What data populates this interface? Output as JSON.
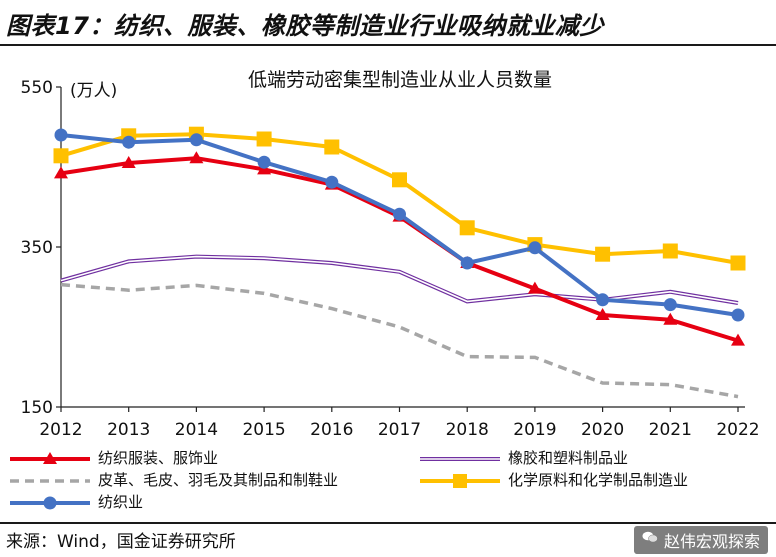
{
  "figure_title": "图表17：纺织、服装、橡胶等制造业行业吸纳就业减少",
  "source_text": "来源：Wind，国金证券研究所",
  "watermark_text": "赵伟宏观探索",
  "chart_data": {
    "type": "line",
    "title": "低端劳动密集型制造业从业人员数量",
    "unit_label": "(万人)",
    "x": [
      "2012",
      "2013",
      "2014",
      "2015",
      "2016",
      "2017",
      "2018",
      "2019",
      "2020",
      "2021",
      "2022"
    ],
    "y_ticks": [
      150,
      350,
      550
    ],
    "ylim": [
      150,
      550
    ],
    "grid": false,
    "legend_position": "bottom",
    "series": [
      {
        "name": "纺织服装、服饰业",
        "color": "#e60012",
        "marker": "triangle",
        "style": "solid-thick",
        "values": [
          442,
          455,
          461,
          447,
          428,
          388,
          330,
          298,
          265,
          259,
          233
        ]
      },
      {
        "name": "橡胶和塑料制品业",
        "color": "#7030a0",
        "marker": "none",
        "style": "double-thin",
        "values": [
          308,
          332,
          338,
          336,
          330,
          319,
          282,
          291,
          284,
          294,
          280
        ]
      },
      {
        "name": "皮革、毛皮、羽毛及其制品和制鞋业",
        "color": "#a6a6a6",
        "marker": "none",
        "style": "dashed",
        "values": [
          303,
          296,
          302,
          292,
          273,
          250,
          213,
          212,
          180,
          178,
          163
        ]
      },
      {
        "name": "化学原料和化学制品制造业",
        "color": "#ffc000",
        "marker": "square",
        "style": "solid-thick",
        "values": [
          464,
          489,
          491,
          485,
          475,
          434,
          374,
          353,
          341,
          345,
          330
        ]
      },
      {
        "name": "纺织业",
        "color": "#4472c4",
        "marker": "circle",
        "style": "solid-thick",
        "values": [
          490,
          481,
          484,
          456,
          431,
          391,
          330,
          349,
          284,
          278,
          265
        ]
      }
    ]
  }
}
